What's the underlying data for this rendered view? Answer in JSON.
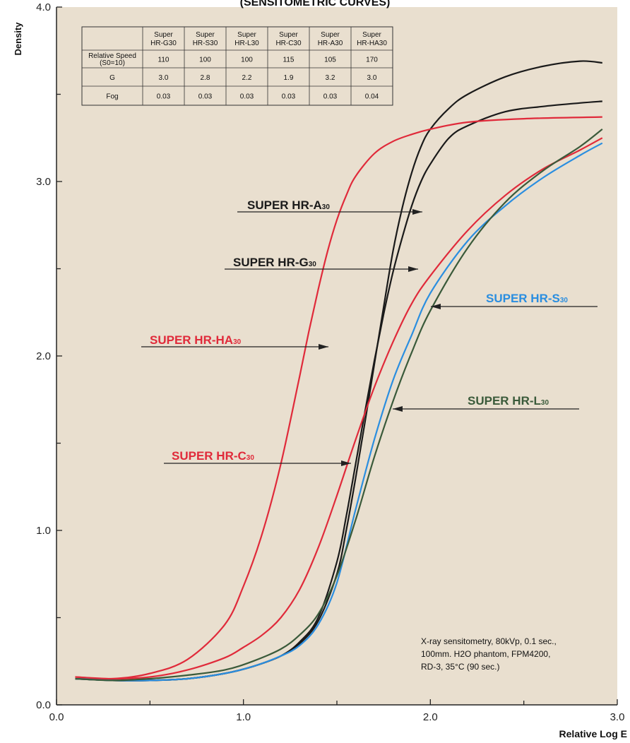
{
  "chart_data": {
    "type": "line",
    "title": "(SENSITOMETRIC CURVES)",
    "xlabel": "Relative Log E",
    "ylabel": "Density",
    "xlim": [
      0.0,
      3.0
    ],
    "ylim": [
      0.0,
      4.0
    ],
    "x_ticks": [
      "0.0",
      "1.0",
      "2.0",
      "3.0"
    ],
    "y_ticks": [
      "0.0",
      "1.0",
      "2.0",
      "3.0",
      "4.0"
    ],
    "grid": false,
    "colors": {
      "plot_bg": "#e9dfcf",
      "black": "#1a1a1a",
      "red": "#e02a3a",
      "blue": "#2a8ee0",
      "green": "#3a5a3a"
    },
    "series": [
      {
        "name": "SUPER HR-A30",
        "color": "#1a1a1a",
        "x": [
          0.1,
          0.3,
          0.5,
          0.7,
          0.9,
          1.05,
          1.2,
          1.3,
          1.4,
          1.5,
          1.55,
          1.6,
          1.65,
          1.7,
          1.75,
          1.8,
          1.85,
          1.9,
          1.95,
          2.0,
          2.1,
          2.2,
          2.4,
          2.6,
          2.8,
          2.92
        ],
        "y": [
          0.15,
          0.14,
          0.14,
          0.15,
          0.18,
          0.22,
          0.28,
          0.35,
          0.48,
          0.75,
          1.0,
          1.3,
          1.62,
          1.95,
          2.28,
          2.6,
          2.85,
          3.05,
          3.2,
          3.3,
          3.42,
          3.5,
          3.6,
          3.66,
          3.69,
          3.68
        ]
      },
      {
        "name": "SUPER HR-G30",
        "color": "#1a1a1a",
        "x": [
          0.1,
          0.3,
          0.5,
          0.7,
          0.9,
          1.05,
          1.2,
          1.3,
          1.4,
          1.5,
          1.55,
          1.6,
          1.65,
          1.7,
          1.75,
          1.8,
          1.85,
          1.9,
          1.95,
          2.0,
          2.1,
          2.2,
          2.4,
          2.6,
          2.8,
          2.92
        ],
        "y": [
          0.15,
          0.14,
          0.14,
          0.15,
          0.18,
          0.22,
          0.28,
          0.36,
          0.5,
          0.82,
          1.08,
          1.38,
          1.68,
          1.97,
          2.24,
          2.48,
          2.68,
          2.86,
          3.0,
          3.1,
          3.25,
          3.32,
          3.4,
          3.43,
          3.45,
          3.46
        ]
      },
      {
        "name": "SUPER HR-HA30",
        "color": "#e02a3a",
        "x": [
          0.1,
          0.3,
          0.5,
          0.7,
          0.9,
          1.0,
          1.1,
          1.2,
          1.3,
          1.35,
          1.4,
          1.45,
          1.5,
          1.55,
          1.6,
          1.7,
          1.8,
          1.9,
          2.0,
          2.2,
          2.5,
          2.92
        ],
        "y": [
          0.16,
          0.15,
          0.18,
          0.26,
          0.46,
          0.68,
          0.98,
          1.38,
          1.88,
          2.14,
          2.38,
          2.6,
          2.78,
          2.92,
          3.03,
          3.16,
          3.23,
          3.27,
          3.3,
          3.34,
          3.36,
          3.37
        ]
      },
      {
        "name": "SUPER HR-C30",
        "color": "#e02a3a",
        "x": [
          0.1,
          0.3,
          0.5,
          0.7,
          0.9,
          1.0,
          1.1,
          1.2,
          1.3,
          1.4,
          1.5,
          1.6,
          1.7,
          1.8,
          1.9,
          2.0,
          2.2,
          2.4,
          2.6,
          2.8,
          2.92
        ],
        "y": [
          0.16,
          0.15,
          0.16,
          0.2,
          0.27,
          0.33,
          0.4,
          0.5,
          0.66,
          0.9,
          1.2,
          1.52,
          1.82,
          2.08,
          2.3,
          2.46,
          2.72,
          2.92,
          3.07,
          3.18,
          3.25
        ]
      },
      {
        "name": "SUPER HR-S30",
        "color": "#2a8ee0",
        "x": [
          0.1,
          0.3,
          0.5,
          0.7,
          0.9,
          1.05,
          1.2,
          1.3,
          1.4,
          1.5,
          1.6,
          1.7,
          1.8,
          1.9,
          2.0,
          2.2,
          2.4,
          2.6,
          2.8,
          2.92
        ],
        "y": [
          0.15,
          0.14,
          0.14,
          0.15,
          0.18,
          0.22,
          0.28,
          0.34,
          0.46,
          0.7,
          1.12,
          1.52,
          1.86,
          2.12,
          2.36,
          2.66,
          2.86,
          3.02,
          3.15,
          3.22
        ]
      },
      {
        "name": "SUPER HR-L30",
        "color": "#3a5a3a",
        "x": [
          0.1,
          0.3,
          0.5,
          0.7,
          0.9,
          1.05,
          1.2,
          1.3,
          1.4,
          1.5,
          1.6,
          1.7,
          1.8,
          1.9,
          2.0,
          2.2,
          2.4,
          2.6,
          2.8,
          2.92
        ],
        "y": [
          0.15,
          0.14,
          0.15,
          0.17,
          0.2,
          0.25,
          0.32,
          0.4,
          0.52,
          0.74,
          1.06,
          1.42,
          1.74,
          2.02,
          2.26,
          2.62,
          2.88,
          3.06,
          3.2,
          3.3
        ]
      }
    ],
    "annotations": [
      {
        "id": "a30",
        "text": "SUPER HR-A",
        "sub": "30",
        "color": "#1a1a1a"
      },
      {
        "id": "g30",
        "text": "SUPER HR-G",
        "sub": "30",
        "color": "#1a1a1a"
      },
      {
        "id": "s30",
        "text": "SUPER HR-S",
        "sub": "30",
        "color": "#2a8ee0"
      },
      {
        "id": "ha30",
        "text": "SUPER HR-HA",
        "sub": "30",
        "color": "#e02a3a"
      },
      {
        "id": "l30",
        "text": "SUPER HR-L",
        "sub": "30",
        "color": "#3a5a3a"
      },
      {
        "id": "c30",
        "text": "SUPER HR-C",
        "sub": "30",
        "color": "#e02a3a"
      }
    ],
    "table": {
      "columns": [
        {
          "line1": "Super",
          "line2": "HR-G30",
          "color": "#1a1a1a"
        },
        {
          "line1": "Super",
          "line2": "HR-S30",
          "color": "#2a8ee0"
        },
        {
          "line1": "Super",
          "line2": "HR-L30",
          "color": "#1a1a1a"
        },
        {
          "line1": "Super",
          "line2": "HR-C30",
          "color": "#e02a3a"
        },
        {
          "line1": "Super",
          "line2": "HR-A30",
          "color": "#1a1a1a"
        },
        {
          "line1": "Super",
          "line2": "HR-HA30",
          "color": "#e02a3a"
        }
      ],
      "rows": [
        {
          "label1": "Relative Speed",
          "label2": "(S0=10)",
          "values": [
            "110",
            "100",
            "100",
            "115",
            "105",
            "170"
          ]
        },
        {
          "label1": "G",
          "label2": "",
          "values": [
            "3.0",
            "2.8",
            "2.2",
            "1.9",
            "3.2",
            "3.0"
          ]
        },
        {
          "label1": "Fog",
          "label2": "",
          "values": [
            "0.03",
            "0.03",
            "0.03",
            "0.03",
            "0.03",
            "0.04"
          ]
        }
      ]
    },
    "note_lines": [
      "X-ray sensitometry, 80kVp, 0.1 sec.,",
      "100mm. H2O phantom, FPM4200,",
      "RD-3, 35°C (90 sec.)"
    ]
  }
}
